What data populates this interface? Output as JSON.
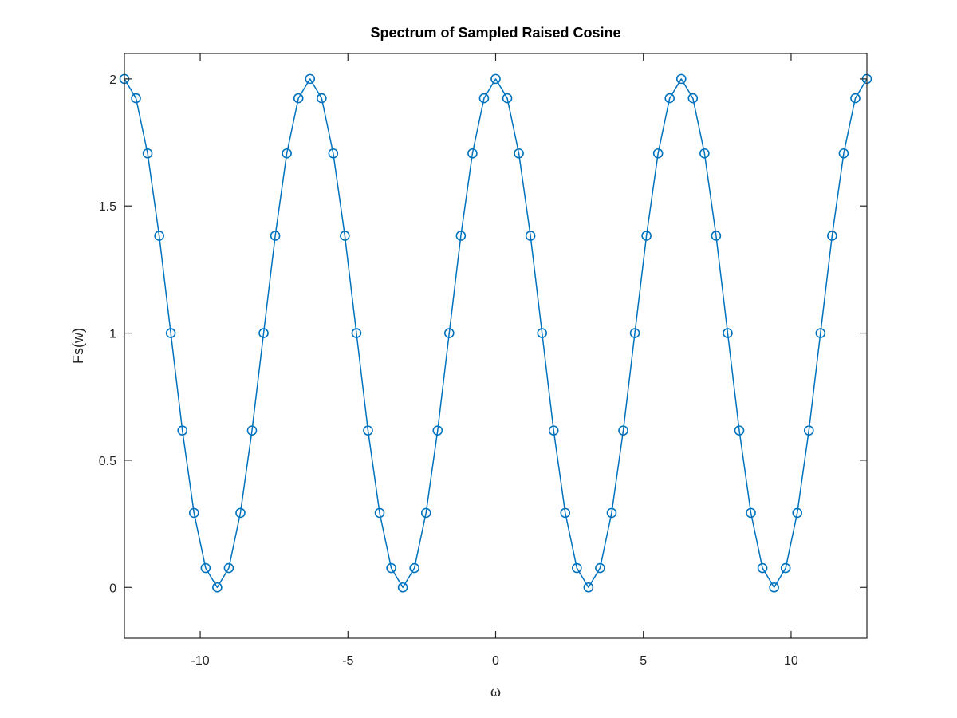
{
  "chart_data": {
    "type": "line",
    "title": "Spectrum of Sampled Raised Cosine",
    "xlabel": "ω",
    "ylabel": "Fs(w)",
    "xlim": [
      -12.566,
      12.566
    ],
    "ylim": [
      -0.2,
      2.1
    ],
    "xticks": [
      -10,
      -5,
      0,
      5,
      10
    ],
    "xtick_labels": [
      "-10",
      "-5",
      "0",
      "5",
      "10"
    ],
    "yticks": [
      0,
      0.5,
      1,
      1.5,
      2
    ],
    "ytick_labels": [
      "0",
      "0.5",
      "1",
      "1.5",
      "2"
    ],
    "grid": false,
    "box": true,
    "series": [
      {
        "color": "#0072bd",
        "marker": "circle",
        "x": [
          -12.566,
          -12.174,
          -11.781,
          -11.388,
          -10.996,
          -10.603,
          -10.21,
          -9.817,
          -9.425,
          -9.032,
          -8.639,
          -8.247,
          -7.854,
          -7.461,
          -7.069,
          -6.676,
          -6.283,
          -5.89,
          -5.498,
          -5.105,
          -4.712,
          -4.32,
          -3.927,
          -3.534,
          -3.142,
          -2.749,
          -2.356,
          -1.963,
          -1.571,
          -1.178,
          -0.785,
          -0.393,
          0,
          0.393,
          0.785,
          1.178,
          1.571,
          1.963,
          2.356,
          2.749,
          3.142,
          3.534,
          3.927,
          4.32,
          4.712,
          5.105,
          5.498,
          5.89,
          6.283,
          6.676,
          7.069,
          7.461,
          7.854,
          8.247,
          8.639,
          9.032,
          9.425,
          9.817,
          10.21,
          10.603,
          10.996,
          11.388,
          11.781,
          12.174,
          12.566
        ],
        "y": [
          2,
          1.924,
          1.707,
          1.383,
          1,
          0.617,
          0.293,
          0.076,
          0,
          0.076,
          0.293,
          0.617,
          1,
          1.383,
          1.707,
          1.924,
          2,
          1.924,
          1.707,
          1.383,
          1,
          0.617,
          0.293,
          0.076,
          0,
          0.076,
          0.293,
          0.617,
          1,
          1.383,
          1.707,
          1.924,
          2,
          1.924,
          1.707,
          1.383,
          1,
          0.617,
          0.293,
          0.076,
          0,
          0.076,
          0.293,
          0.617,
          1,
          1.383,
          1.707,
          1.924,
          2,
          1.924,
          1.707,
          1.383,
          1,
          0.617,
          0.293,
          0.076,
          0,
          0.076,
          0.293,
          0.617,
          1,
          1.383,
          1.707,
          1.924,
          2
        ]
      }
    ]
  }
}
